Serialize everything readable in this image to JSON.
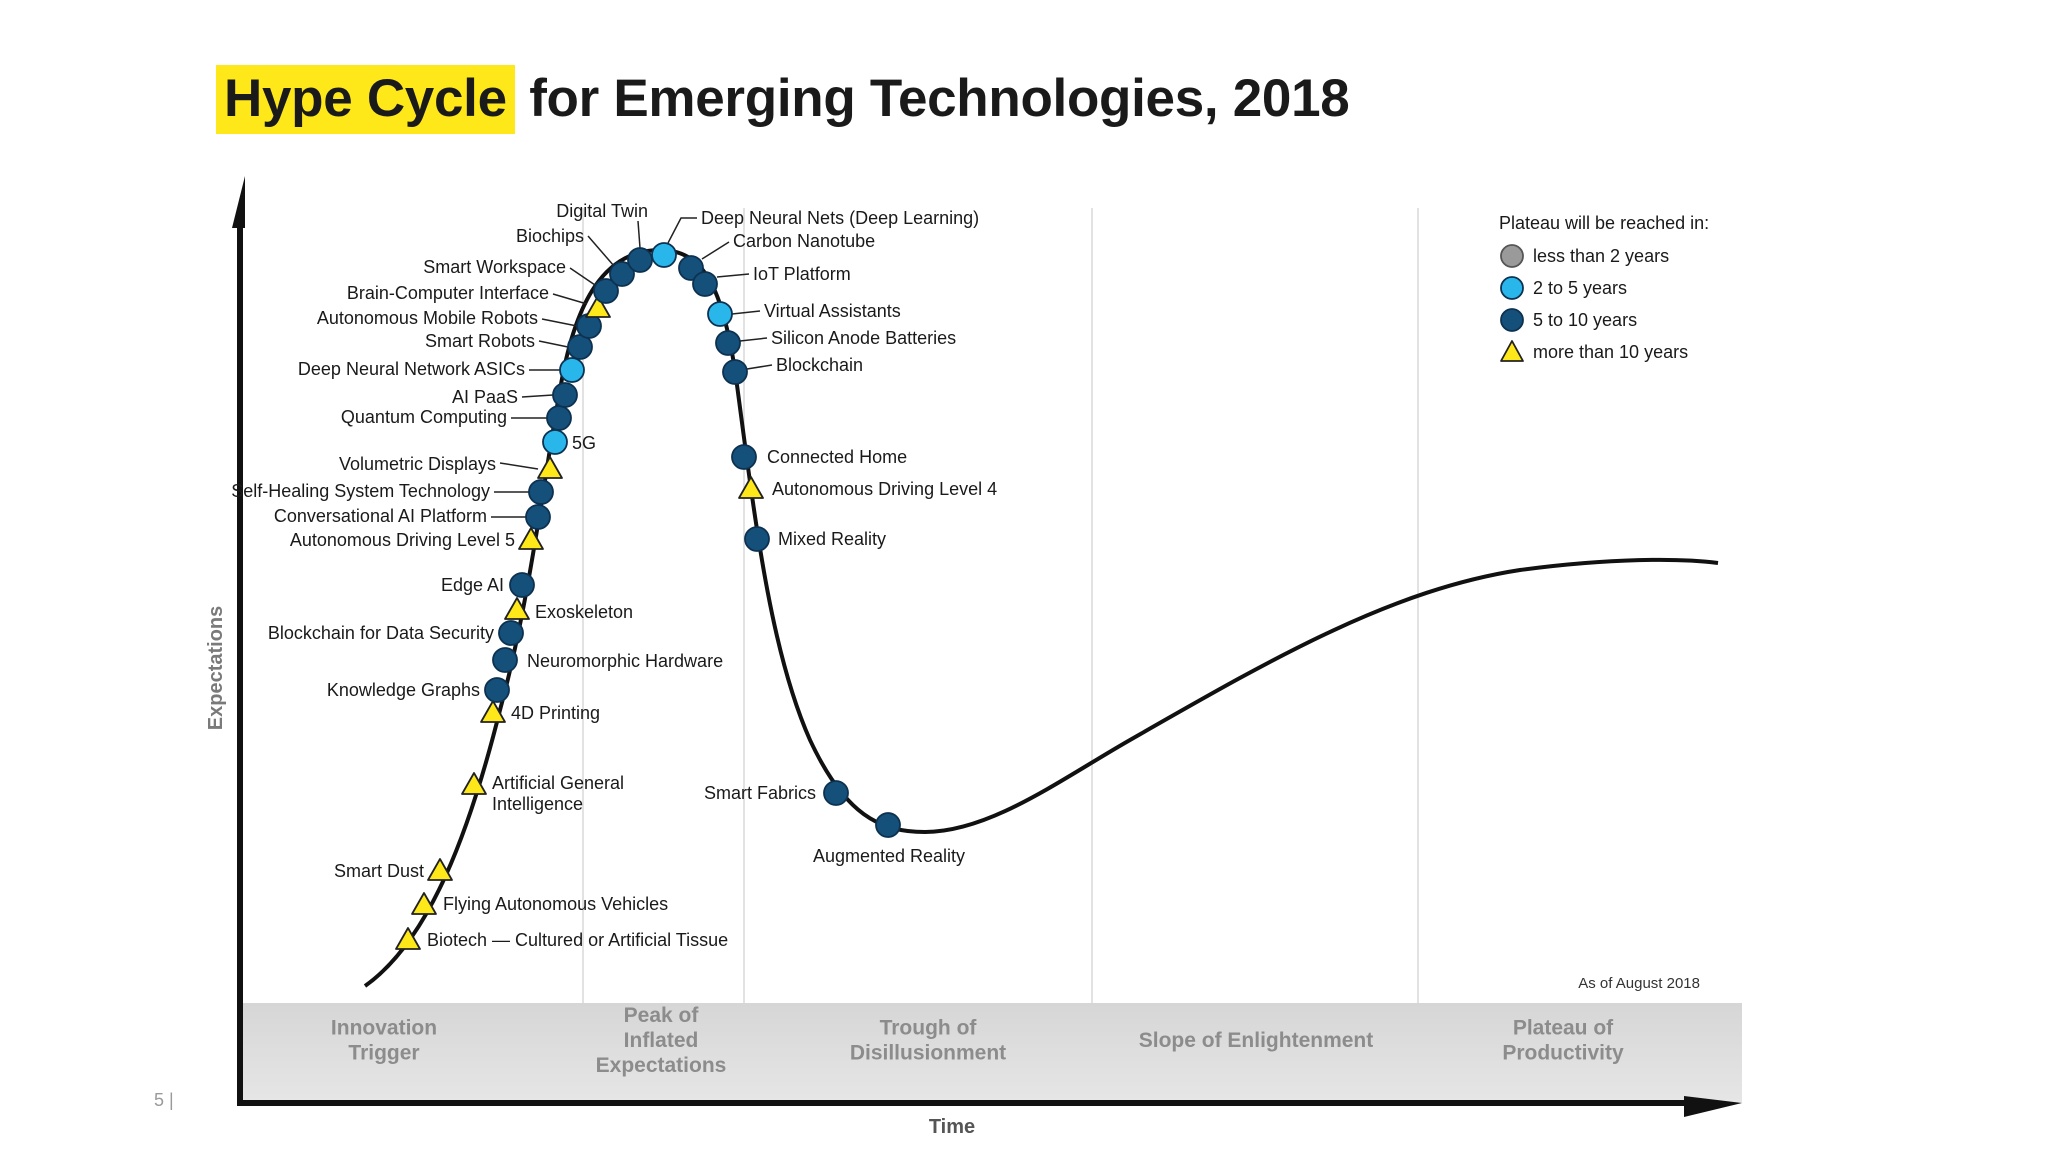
{
  "title": {
    "highlight": "Hype Cycle",
    "rest": " for Emerging Technologies, 2018"
  },
  "page_number": "5  |",
  "axes": {
    "y_label": "Expectations",
    "x_label": "Time"
  },
  "as_of": "As of August 2018",
  "legend": {
    "title": "Plateau will be reached in:",
    "items": [
      {
        "label": "less than 2 years",
        "marker": "circle",
        "color": "#9a9a9a"
      },
      {
        "label": "2 to 5 years",
        "marker": "circle",
        "color": "#29b6ea"
      },
      {
        "label": "5 to 10 years",
        "marker": "circle",
        "color": "#14507a"
      },
      {
        "label": "more than 10 years",
        "marker": "triangle",
        "color": "#ffe81a"
      }
    ]
  },
  "phases": [
    {
      "lines": [
        "Innovation",
        "Trigger"
      ]
    },
    {
      "lines": [
        "Peak of",
        "Inflated",
        "Expectations"
      ]
    },
    {
      "lines": [
        "Trough of",
        "Disillusionment"
      ]
    },
    {
      "lines": [
        "Slope of Enlightenment"
      ]
    },
    {
      "lines": [
        "Plateau of",
        "Productivity"
      ]
    }
  ],
  "technologies": [
    {
      "label": "Biotech — Cultured or Artificial Tissue",
      "category": "more than 10 years"
    },
    {
      "label": "Flying Autonomous Vehicles",
      "category": "more than 10 years"
    },
    {
      "label": "Smart Dust",
      "category": "more than 10 years"
    },
    {
      "label": "Artificial General Intelligence",
      "category": "more than 10 years"
    },
    {
      "label": "4D Printing",
      "category": "more than 10 years"
    },
    {
      "label": "Knowledge Graphs",
      "category": "5 to 10 years"
    },
    {
      "label": "Neuromorphic Hardware",
      "category": "5 to 10 years"
    },
    {
      "label": "Blockchain for Data Security",
      "category": "5 to 10 years"
    },
    {
      "label": "Exoskeleton",
      "category": "more than 10 years"
    },
    {
      "label": "Edge AI",
      "category": "5 to 10 years"
    },
    {
      "label": "Autonomous Driving Level 5",
      "category": "more than 10 years"
    },
    {
      "label": "Conversational AI Platform",
      "category": "5 to 10 years"
    },
    {
      "label": "Self-Healing System Technology",
      "category": "5 to 10 years"
    },
    {
      "label": "Volumetric Displays",
      "category": "more than 10 years"
    },
    {
      "label": "5G",
      "category": "2 to 5 years"
    },
    {
      "label": "Quantum Computing",
      "category": "5 to 10 years"
    },
    {
      "label": "AI PaaS",
      "category": "5 to 10 years"
    },
    {
      "label": "Deep Neural Network ASICs",
      "category": "2 to 5 years"
    },
    {
      "label": "Smart Robots",
      "category": "5 to 10 years"
    },
    {
      "label": "Autonomous Mobile Robots",
      "category": "5 to 10 years"
    },
    {
      "label": "Brain-Computer Interface",
      "category": "more than 10 years"
    },
    {
      "label": "Smart Workspace",
      "category": "5 to 10 years"
    },
    {
      "label": "Biochips",
      "category": "5 to 10 years"
    },
    {
      "label": "Digital Twin",
      "category": "5 to 10 years"
    },
    {
      "label": "Deep Neural Nets (Deep Learning)",
      "category": "2 to 5 years"
    },
    {
      "label": "Carbon Nanotube",
      "category": "5 to 10 years"
    },
    {
      "label": "IoT Platform",
      "category": "5 to 10 years"
    },
    {
      "label": "Virtual Assistants",
      "category": "2 to 5 years"
    },
    {
      "label": "Silicon Anode Batteries",
      "category": "5 to 10 years"
    },
    {
      "label": "Blockchain",
      "category": "5 to 10 years"
    },
    {
      "label": "Connected Home",
      "category": "5 to 10 years"
    },
    {
      "label": "Autonomous Driving Level 4",
      "category": "more than 10 years"
    },
    {
      "label": "Mixed Reality",
      "category": "5 to 10 years"
    },
    {
      "label": "Smart Fabrics",
      "category": "5 to 10 years"
    },
    {
      "label": "Augmented Reality",
      "category": "5 to 10 years"
    }
  ]
}
